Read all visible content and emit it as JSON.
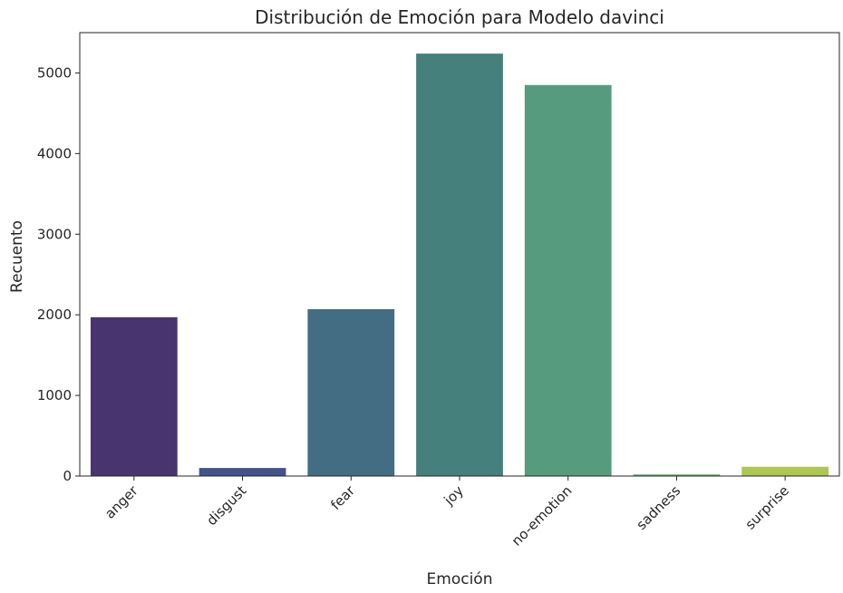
{
  "chart_data": {
    "type": "bar",
    "title": "Distribución de Emoción para Modelo davinci",
    "xlabel": "Emoción",
    "ylabel": "Recuento",
    "categories": [
      "anger",
      "disgust",
      "fear",
      "joy",
      "no-emotion",
      "sadness",
      "surprise"
    ],
    "values": [
      1970,
      100,
      2070,
      5240,
      4850,
      20,
      115
    ],
    "colors": [
      "#48356F",
      "#435389",
      "#436D83",
      "#45807C",
      "#579B7F",
      "#68AD76",
      "#AEC654"
    ],
    "ylim": [
      0,
      5500
    ],
    "yticks": [
      0,
      1000,
      2000,
      3000,
      4000,
      5000
    ],
    "grid": false,
    "legend": "none"
  }
}
